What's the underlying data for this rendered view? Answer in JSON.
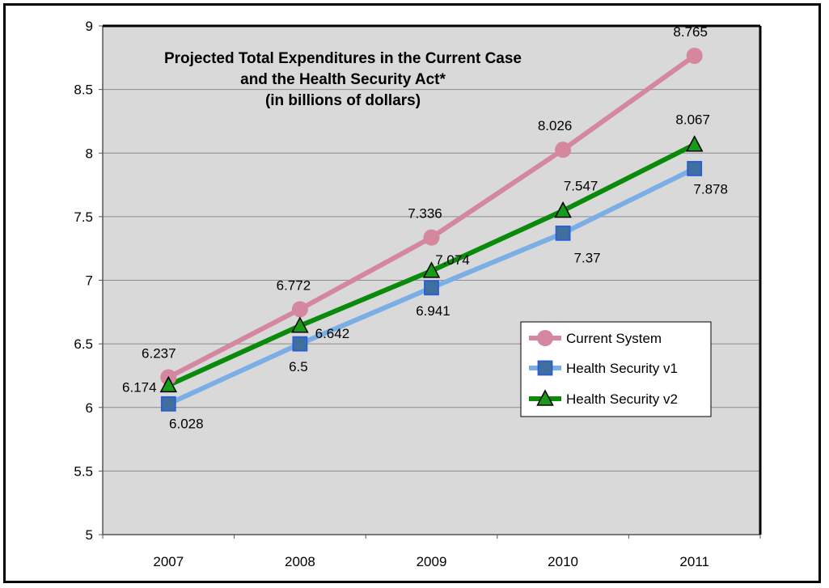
{
  "chart_data": {
    "type": "line",
    "title_lines": [
      "Projected Total Expenditures  in the Current Case",
      "and the Health Security Act*",
      "(in billions of dollars)"
    ],
    "categories": [
      "2007",
      "2008",
      "2009",
      "2010",
      "2011"
    ],
    "ylim": [
      5,
      9
    ],
    "yticks": [
      "5",
      "5.5",
      "6",
      "6.5",
      "7",
      "7.5",
      "8",
      "8.5",
      "9"
    ],
    "grid": true,
    "legend_position": "right",
    "series": [
      {
        "name": "Current System",
        "values": [
          6.237,
          6.772,
          7.336,
          8.026,
          8.765
        ],
        "labels": [
          "6.237",
          "6.772",
          "7.336",
          "8.026",
          "8.765"
        ],
        "color": "#d4879f",
        "marker": "circle"
      },
      {
        "name": "Health Security v1",
        "values": [
          6.028,
          6.5,
          6.941,
          7.37,
          7.878
        ],
        "labels": [
          "6.028",
          "6.5",
          "6.941",
          "7.37",
          "7.878"
        ],
        "color": "#7aaee4",
        "marker": "square"
      },
      {
        "name": "Health Security v2",
        "values": [
          6.174,
          6.642,
          7.074,
          7.547,
          8.067
        ],
        "labels": [
          "6.174",
          "6.642",
          "7.074",
          "7.547",
          "8.067"
        ],
        "color": "#0a8a0a",
        "marker": "triangle"
      }
    ]
  }
}
